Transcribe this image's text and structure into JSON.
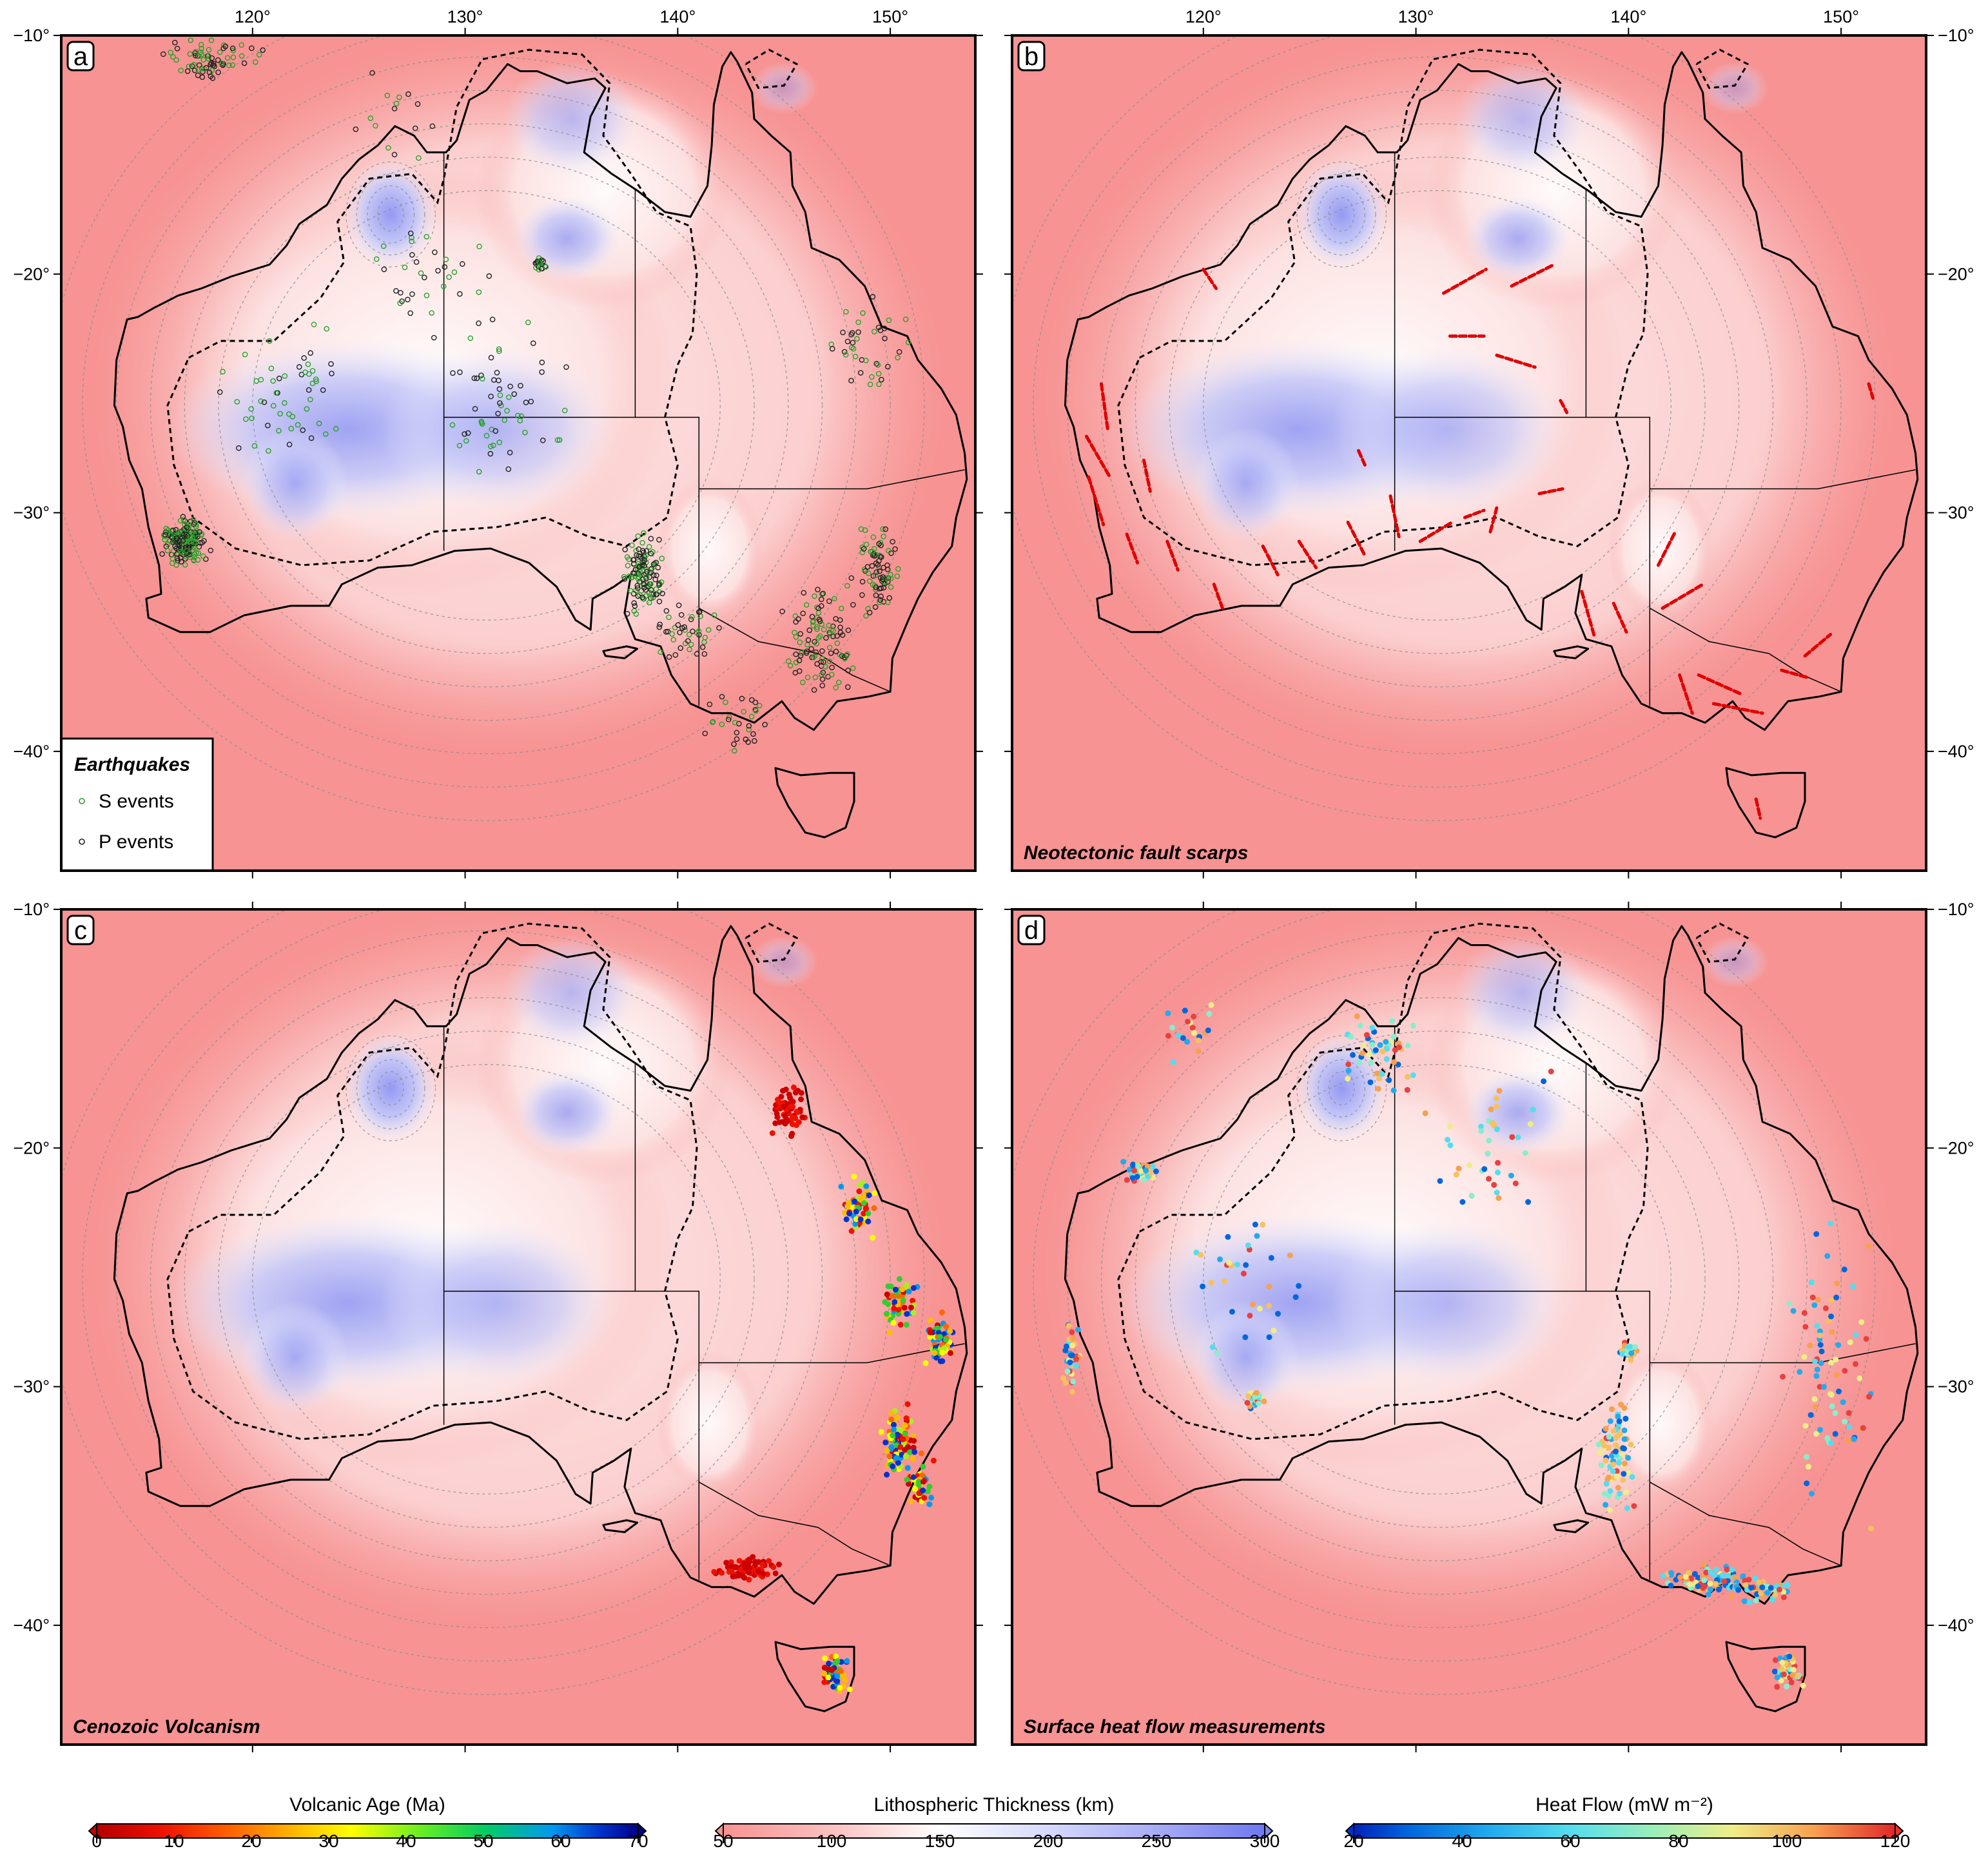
{
  "map": {
    "lon_range": [
      111,
      154
    ],
    "lat_range": [
      -10,
      -45
    ],
    "lon_ticks": [
      120,
      130,
      140,
      150
    ],
    "lat_ticks": [
      -10,
      -20,
      -30,
      -40
    ],
    "lon_tick_labels": [
      "120°",
      "130°",
      "140°",
      "150°"
    ],
    "lat_tick_labels": [
      "−10°",
      "−20°",
      "−30°",
      "−40°"
    ]
  },
  "panels": [
    {
      "letter": "a",
      "title": ""
    },
    {
      "letter": "b",
      "title": "Neotectonic fault scarps"
    },
    {
      "letter": "c",
      "title": "Cenozoic Volcanism"
    },
    {
      "letter": "d",
      "title": "Surface heat flow measurements"
    }
  ],
  "legend": {
    "title": "Earthquakes",
    "items": [
      {
        "label": "S events",
        "color": "#2aa02a"
      },
      {
        "label": "P events",
        "color": "#222222"
      }
    ]
  },
  "colorbars": [
    {
      "title": "Volcanic Age (Ma)",
      "ticks": [
        "0",
        "10",
        "20",
        "30",
        "40",
        "50",
        "60",
        "70"
      ],
      "colors": [
        "#cc0000",
        "#ff3300",
        "#ff8800",
        "#ffcc00",
        "#ffff00",
        "#aaff00",
        "#33dd33",
        "#00cc88",
        "#00aaff",
        "#0033dd",
        "#000088"
      ]
    },
    {
      "title": "Lithospheric Thickness (km)",
      "ticks": [
        "50",
        "100",
        "150",
        "200",
        "250",
        "300"
      ],
      "colors": [
        "#f79393",
        "#fbc9c9",
        "#ffffff",
        "#d6d9fb",
        "#a9aef7",
        "#7d86f2"
      ]
    },
    {
      "title": "Heat Flow (mW m⁻²)",
      "ticks": [
        "20",
        "40",
        "60",
        "80",
        "100",
        "120"
      ],
      "colors": [
        "#0033cc",
        "#0088ee",
        "#33ccee",
        "#88eecc",
        "#eeee88",
        "#f7a050",
        "#e83030"
      ]
    }
  ],
  "colors": {
    "thin_lithosphere": "#f79393",
    "thick_lithosphere": "#9aa0f5",
    "fault_scarps": "#e00000"
  }
}
